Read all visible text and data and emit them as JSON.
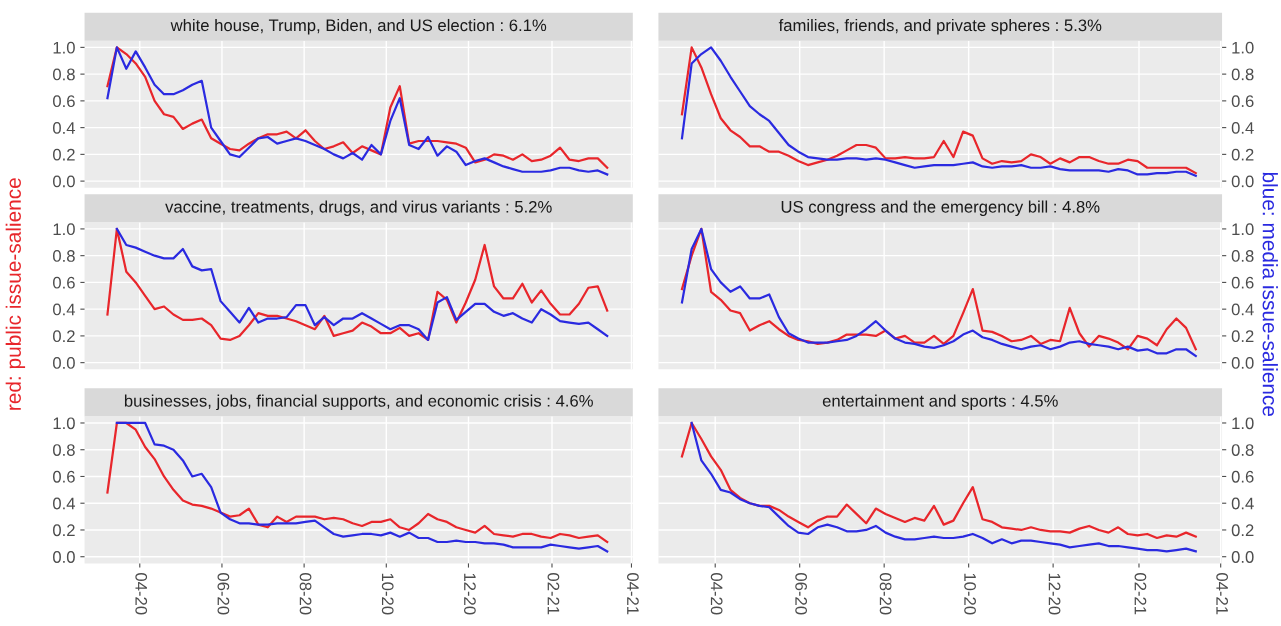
{
  "chart_data": [
    {
      "type": "line",
      "title": "white house, Trump, Biden, and US election : 6.1%",
      "grid": true,
      "tick_labels": "y",
      "x": [
        "2020-03-08",
        "2020-03-15",
        "2020-03-22",
        "2020-03-29",
        "2020-04-05",
        "2020-04-12",
        "2020-04-19",
        "2020-04-26",
        "2020-05-03",
        "2020-05-10",
        "2020-05-17",
        "2020-05-24",
        "2020-05-31",
        "2020-06-07",
        "2020-06-14",
        "2020-06-21",
        "2020-06-28",
        "2020-07-05",
        "2020-07-12",
        "2020-07-19",
        "2020-07-26",
        "2020-08-02",
        "2020-08-09",
        "2020-08-16",
        "2020-08-23",
        "2020-08-30",
        "2020-09-06",
        "2020-09-13",
        "2020-09-20",
        "2020-09-27",
        "2020-10-04",
        "2020-10-11",
        "2020-10-18",
        "2020-10-25",
        "2020-11-01",
        "2020-11-08",
        "2020-11-15",
        "2020-11-22",
        "2020-11-29",
        "2020-12-06",
        "2020-12-13",
        "2020-12-20",
        "2020-12-27",
        "2021-01-03",
        "2021-01-10",
        "2021-01-17",
        "2021-01-24",
        "2021-01-31",
        "2021-02-07",
        "2021-02-14",
        "2021-02-21",
        "2021-02-28",
        "2021-03-07",
        "2021-03-14"
      ],
      "xlim": [
        "2020-02-20",
        "2021-04-02"
      ],
      "ylim": [
        -0.05,
        1.05
      ],
      "yticks": [
        {
          "value": 0,
          "label": "0.0"
        },
        {
          "value": 0.2,
          "label": "0.2"
        },
        {
          "value": 0.4,
          "label": "0.4"
        },
        {
          "value": 0.6,
          "label": "0.6"
        },
        {
          "value": 0.8,
          "label": "0.8"
        },
        {
          "value": 1,
          "label": "1.0"
        }
      ],
      "xticks": [
        {
          "value": "2020-04-01",
          "label": null
        },
        {
          "value": "2020-06-01",
          "label": null
        },
        {
          "value": "2020-08-01",
          "label": null
        },
        {
          "value": "2020-10-01",
          "label": null
        },
        {
          "value": "2020-12-01",
          "label": null
        },
        {
          "value": "2021-02-01",
          "label": null
        },
        {
          "value": "2021-04-01",
          "label": null
        }
      ],
      "series": [
        {
          "color": "#e8262b",
          "values": [
            0.71,
            1.0,
            0.95,
            0.88,
            0.78,
            0.6,
            0.5,
            0.48,
            0.39,
            0.43,
            0.46,
            0.32,
            0.28,
            0.24,
            0.23,
            0.28,
            0.32,
            0.35,
            0.35,
            0.37,
            0.32,
            0.38,
            0.3,
            0.24,
            0.26,
            0.29,
            0.21,
            0.26,
            0.23,
            0.2,
            0.55,
            0.71,
            0.28,
            0.3,
            0.3,
            0.3,
            0.29,
            0.28,
            0.25,
            0.14,
            0.16,
            0.2,
            0.19,
            0.16,
            0.2,
            0.15,
            0.16,
            0.19,
            0.25,
            0.16,
            0.15,
            0.17,
            0.17,
            0.1
          ]
        },
        {
          "color": "#2a2ae0",
          "values": [
            0.62,
            1.0,
            0.84,
            0.97,
            0.85,
            0.72,
            0.65,
            0.65,
            0.68,
            0.72,
            0.75,
            0.4,
            0.3,
            0.2,
            0.18,
            0.25,
            0.32,
            0.33,
            0.28,
            0.3,
            0.32,
            0.3,
            0.27,
            0.24,
            0.2,
            0.17,
            0.21,
            0.16,
            0.27,
            0.2,
            0.45,
            0.62,
            0.27,
            0.24,
            0.33,
            0.19,
            0.26,
            0.22,
            0.12,
            0.15,
            0.17,
            0.14,
            0.11,
            0.09,
            0.07,
            0.07,
            0.07,
            0.08,
            0.1,
            0.1,
            0.08,
            0.07,
            0.08,
            0.05
          ]
        }
      ]
    },
    {
      "type": "line",
      "title": "families, friends, and private spheres : 5.3%",
      "grid": true,
      "tick_labels": "y",
      "x": [
        "2020-03-08",
        "2020-03-15",
        "2020-03-22",
        "2020-03-29",
        "2020-04-05",
        "2020-04-12",
        "2020-04-19",
        "2020-04-26",
        "2020-05-03",
        "2020-05-10",
        "2020-05-17",
        "2020-05-24",
        "2020-05-31",
        "2020-06-07",
        "2020-06-14",
        "2020-06-21",
        "2020-06-28",
        "2020-07-05",
        "2020-07-12",
        "2020-07-19",
        "2020-07-26",
        "2020-08-02",
        "2020-08-09",
        "2020-08-16",
        "2020-08-23",
        "2020-08-30",
        "2020-09-06",
        "2020-09-13",
        "2020-09-20",
        "2020-09-27",
        "2020-10-04",
        "2020-10-11",
        "2020-10-18",
        "2020-10-25",
        "2020-11-01",
        "2020-11-08",
        "2020-11-15",
        "2020-11-22",
        "2020-11-29",
        "2020-12-06",
        "2020-12-13",
        "2020-12-20",
        "2020-12-27",
        "2021-01-03",
        "2021-01-10",
        "2021-01-17",
        "2021-01-24",
        "2021-01-31",
        "2021-02-07",
        "2021-02-14",
        "2021-02-21",
        "2021-02-28",
        "2021-03-07",
        "2021-03-14"
      ],
      "xlim": [
        "2020-02-20",
        "2021-04-02"
      ],
      "ylim": [
        -0.05,
        1.05
      ],
      "yticks": [
        {
          "value": 0,
          "label": "0.0"
        },
        {
          "value": 0.2,
          "label": "0.2"
        },
        {
          "value": 0.4,
          "label": "0.4"
        },
        {
          "value": 0.6,
          "label": "0.6"
        },
        {
          "value": 0.8,
          "label": "0.8"
        },
        {
          "value": 1,
          "label": "1.0"
        }
      ],
      "xticks": [
        {
          "value": "2020-04-01",
          "label": null
        },
        {
          "value": "2020-06-01",
          "label": null
        },
        {
          "value": "2020-08-01",
          "label": null
        },
        {
          "value": "2020-10-01",
          "label": null
        },
        {
          "value": "2020-12-01",
          "label": null
        },
        {
          "value": "2021-02-01",
          "label": null
        },
        {
          "value": "2021-04-01",
          "label": null
        }
      ],
      "series": [
        {
          "color": "#e8262b",
          "values": [
            0.5,
            1.0,
            0.85,
            0.65,
            0.47,
            0.38,
            0.33,
            0.26,
            0.26,
            0.22,
            0.22,
            0.19,
            0.15,
            0.12,
            0.14,
            0.16,
            0.19,
            0.23,
            0.27,
            0.27,
            0.25,
            0.17,
            0.17,
            0.18,
            0.17,
            0.17,
            0.18,
            0.3,
            0.18,
            0.37,
            0.34,
            0.17,
            0.13,
            0.15,
            0.14,
            0.15,
            0.2,
            0.18,
            0.13,
            0.17,
            0.14,
            0.18,
            0.18,
            0.15,
            0.13,
            0.13,
            0.16,
            0.15,
            0.1,
            0.1,
            0.1,
            0.1,
            0.1,
            0.06
          ]
        },
        {
          "color": "#2a2ae0",
          "values": [
            0.32,
            0.88,
            0.95,
            1.0,
            0.9,
            0.78,
            0.67,
            0.56,
            0.5,
            0.45,
            0.36,
            0.27,
            0.22,
            0.18,
            0.17,
            0.16,
            0.16,
            0.17,
            0.17,
            0.16,
            0.17,
            0.16,
            0.14,
            0.12,
            0.1,
            0.11,
            0.12,
            0.12,
            0.12,
            0.13,
            0.14,
            0.11,
            0.1,
            0.11,
            0.11,
            0.12,
            0.1,
            0.1,
            0.11,
            0.09,
            0.08,
            0.08,
            0.08,
            0.08,
            0.07,
            0.09,
            0.08,
            0.05,
            0.05,
            0.06,
            0.06,
            0.07,
            0.07,
            0.04
          ]
        }
      ]
    },
    {
      "type": "line",
      "title": "vaccine, treatments, drugs, and virus variants : 5.2%",
      "ylabel": "red: public issue-salience",
      "grid": true,
      "tick_labels": "y",
      "x": [
        "2020-03-08",
        "2020-03-15",
        "2020-03-22",
        "2020-03-29",
        "2020-04-05",
        "2020-04-12",
        "2020-04-19",
        "2020-04-26",
        "2020-05-03",
        "2020-05-10",
        "2020-05-17",
        "2020-05-24",
        "2020-05-31",
        "2020-06-07",
        "2020-06-14",
        "2020-06-21",
        "2020-06-28",
        "2020-07-05",
        "2020-07-12",
        "2020-07-19",
        "2020-07-26",
        "2020-08-02",
        "2020-08-09",
        "2020-08-16",
        "2020-08-23",
        "2020-08-30",
        "2020-09-06",
        "2020-09-13",
        "2020-09-20",
        "2020-09-27",
        "2020-10-04",
        "2020-10-11",
        "2020-10-18",
        "2020-10-25",
        "2020-11-01",
        "2020-11-08",
        "2020-11-15",
        "2020-11-22",
        "2020-11-29",
        "2020-12-06",
        "2020-12-13",
        "2020-12-20",
        "2020-12-27",
        "2021-01-03",
        "2021-01-10",
        "2021-01-17",
        "2021-01-24",
        "2021-01-31",
        "2021-02-07",
        "2021-02-14",
        "2021-02-21",
        "2021-02-28",
        "2021-03-07",
        "2021-03-14"
      ],
      "xlim": [
        "2020-02-20",
        "2021-04-02"
      ],
      "ylim": [
        -0.05,
        1.05
      ],
      "yticks": [
        {
          "value": 0,
          "label": "0.0"
        },
        {
          "value": 0.2,
          "label": "0.2"
        },
        {
          "value": 0.4,
          "label": "0.4"
        },
        {
          "value": 0.6,
          "label": "0.6"
        },
        {
          "value": 0.8,
          "label": "0.8"
        },
        {
          "value": 1,
          "label": "1.0"
        }
      ],
      "xticks": [
        {
          "value": "2020-04-01",
          "label": null
        },
        {
          "value": "2020-06-01",
          "label": null
        },
        {
          "value": "2020-08-01",
          "label": null
        },
        {
          "value": "2020-10-01",
          "label": null
        },
        {
          "value": "2020-12-01",
          "label": null
        },
        {
          "value": "2021-02-01",
          "label": null
        },
        {
          "value": "2021-04-01",
          "label": null
        }
      ],
      "series": [
        {
          "color": "#e8262b",
          "values": [
            0.36,
            1.0,
            0.68,
            0.6,
            0.5,
            0.4,
            0.42,
            0.36,
            0.32,
            0.32,
            0.33,
            0.28,
            0.18,
            0.17,
            0.2,
            0.28,
            0.37,
            0.35,
            0.35,
            0.33,
            0.31,
            0.28,
            0.25,
            0.35,
            0.2,
            0.22,
            0.24,
            0.3,
            0.27,
            0.22,
            0.22,
            0.26,
            0.2,
            0.22,
            0.17,
            0.53,
            0.47,
            0.3,
            0.45,
            0.62,
            0.88,
            0.57,
            0.48,
            0.48,
            0.59,
            0.45,
            0.54,
            0.44,
            0.36,
            0.36,
            0.44,
            0.56,
            0.57,
            0.39
          ]
        },
        {
          "color": "#2a2ae0",
          "values": [
            null,
            1.0,
            0.88,
            0.86,
            0.83,
            0.8,
            0.78,
            0.78,
            0.85,
            0.72,
            0.69,
            0.7,
            0.46,
            0.38,
            0.3,
            0.41,
            0.3,
            0.33,
            0.33,
            0.34,
            0.43,
            0.43,
            0.28,
            0.34,
            0.28,
            0.33,
            0.33,
            0.37,
            0.33,
            0.29,
            0.25,
            0.28,
            0.28,
            0.25,
            0.17,
            0.45,
            0.49,
            0.32,
            0.38,
            0.44,
            0.44,
            0.38,
            0.35,
            0.37,
            0.33,
            0.3,
            0.4,
            0.36,
            0.31,
            0.3,
            0.29,
            0.3,
            0.25,
            0.2
          ]
        }
      ]
    },
    {
      "type": "line",
      "title": "US congress and the emergency bill : 4.8%",
      "ylabel": "blue: media issue-salience",
      "grid": true,
      "tick_labels": "y",
      "x": [
        "2020-03-08",
        "2020-03-15",
        "2020-03-22",
        "2020-03-29",
        "2020-04-05",
        "2020-04-12",
        "2020-04-19",
        "2020-04-26",
        "2020-05-03",
        "2020-05-10",
        "2020-05-17",
        "2020-05-24",
        "2020-05-31",
        "2020-06-07",
        "2020-06-14",
        "2020-06-21",
        "2020-06-28",
        "2020-07-05",
        "2020-07-12",
        "2020-07-19",
        "2020-07-26",
        "2020-08-02",
        "2020-08-09",
        "2020-08-16",
        "2020-08-23",
        "2020-08-30",
        "2020-09-06",
        "2020-09-13",
        "2020-09-20",
        "2020-09-27",
        "2020-10-04",
        "2020-10-11",
        "2020-10-18",
        "2020-10-25",
        "2020-11-01",
        "2020-11-08",
        "2020-11-15",
        "2020-11-22",
        "2020-11-29",
        "2020-12-06",
        "2020-12-13",
        "2020-12-20",
        "2020-12-27",
        "2021-01-03",
        "2021-01-10",
        "2021-01-17",
        "2021-01-24",
        "2021-01-31",
        "2021-02-07",
        "2021-02-14",
        "2021-02-21",
        "2021-02-28",
        "2021-03-07",
        "2021-03-14"
      ],
      "xlim": [
        "2020-02-20",
        "2021-04-02"
      ],
      "ylim": [
        -0.05,
        1.05
      ],
      "yticks": [
        {
          "value": 0,
          "label": "0.0"
        },
        {
          "value": 0.2,
          "label": "0.2"
        },
        {
          "value": 0.4,
          "label": "0.4"
        },
        {
          "value": 0.6,
          "label": "0.6"
        },
        {
          "value": 0.8,
          "label": "0.8"
        },
        {
          "value": 1,
          "label": "1.0"
        }
      ],
      "xticks": [
        {
          "value": "2020-04-01",
          "label": null
        },
        {
          "value": "2020-06-01",
          "label": null
        },
        {
          "value": "2020-08-01",
          "label": null
        },
        {
          "value": "2020-10-01",
          "label": null
        },
        {
          "value": "2020-12-01",
          "label": null
        },
        {
          "value": "2021-02-01",
          "label": null
        },
        {
          "value": "2021-04-01",
          "label": null
        }
      ],
      "series": [
        {
          "color": "#e8262b",
          "values": [
            0.55,
            0.8,
            1.0,
            0.53,
            0.47,
            0.39,
            0.37,
            0.24,
            0.28,
            0.31,
            0.25,
            0.2,
            0.17,
            0.16,
            0.14,
            0.15,
            0.17,
            0.21,
            0.21,
            0.21,
            0.2,
            0.24,
            0.18,
            0.2,
            0.15,
            0.15,
            0.2,
            0.14,
            0.2,
            0.37,
            0.55,
            0.24,
            0.23,
            0.2,
            0.16,
            0.17,
            0.2,
            0.14,
            0.17,
            0.16,
            0.41,
            0.22,
            0.12,
            0.2,
            0.18,
            0.15,
            0.1,
            0.2,
            0.18,
            0.13,
            0.25,
            0.33,
            0.26,
            0.1
          ]
        },
        {
          "color": "#2a2ae0",
          "values": [
            0.45,
            0.85,
            1.0,
            0.7,
            0.6,
            0.53,
            0.57,
            0.48,
            0.48,
            0.51,
            0.34,
            0.22,
            0.18,
            0.15,
            0.15,
            0.15,
            0.16,
            0.17,
            0.2,
            0.25,
            0.31,
            0.24,
            0.18,
            0.15,
            0.14,
            0.12,
            0.11,
            0.13,
            0.16,
            0.21,
            0.24,
            0.19,
            0.17,
            0.14,
            0.12,
            0.1,
            0.12,
            0.13,
            0.1,
            0.12,
            0.15,
            0.16,
            0.14,
            0.13,
            0.12,
            0.1,
            0.12,
            0.09,
            0.1,
            0.07,
            0.07,
            0.1,
            0.1,
            0.05
          ]
        }
      ]
    },
    {
      "type": "line",
      "title": "businesses, jobs, financial supports, and economic crisis : 4.6%",
      "grid": true,
      "x": [
        "2020-03-08",
        "2020-03-15",
        "2020-03-22",
        "2020-03-29",
        "2020-04-05",
        "2020-04-12",
        "2020-04-19",
        "2020-04-26",
        "2020-05-03",
        "2020-05-10",
        "2020-05-17",
        "2020-05-24",
        "2020-05-31",
        "2020-06-07",
        "2020-06-14",
        "2020-06-21",
        "2020-06-28",
        "2020-07-05",
        "2020-07-12",
        "2020-07-19",
        "2020-07-26",
        "2020-08-02",
        "2020-08-09",
        "2020-08-16",
        "2020-08-23",
        "2020-08-30",
        "2020-09-06",
        "2020-09-13",
        "2020-09-20",
        "2020-09-27",
        "2020-10-04",
        "2020-10-11",
        "2020-10-18",
        "2020-10-25",
        "2020-11-01",
        "2020-11-08",
        "2020-11-15",
        "2020-11-22",
        "2020-11-29",
        "2020-12-06",
        "2020-12-13",
        "2020-12-20",
        "2020-12-27",
        "2021-01-03",
        "2021-01-10",
        "2021-01-17",
        "2021-01-24",
        "2021-01-31",
        "2021-02-07",
        "2021-02-14",
        "2021-02-21",
        "2021-02-28",
        "2021-03-07",
        "2021-03-14"
      ],
      "xlim": [
        "2020-02-20",
        "2021-04-02"
      ],
      "ylim": [
        -0.05,
        1.05
      ],
      "yticks": [
        {
          "value": 0,
          "label": "0.0"
        },
        {
          "value": 0.2,
          "label": "0.2"
        },
        {
          "value": 0.4,
          "label": "0.4"
        },
        {
          "value": 0.6,
          "label": "0.6"
        },
        {
          "value": 0.8,
          "label": "0.8"
        },
        {
          "value": 1,
          "label": "1.0"
        }
      ],
      "xticks": [
        {
          "value": "2020-04-01",
          "label": "04-20"
        },
        {
          "value": "2020-06-01",
          "label": "06-20"
        },
        {
          "value": "2020-08-01",
          "label": "08-20"
        },
        {
          "value": "2020-10-01",
          "label": "10-20"
        },
        {
          "value": "2020-12-01",
          "label": "12-20"
        },
        {
          "value": "2021-02-01",
          "label": "02-21"
        },
        {
          "value": "2021-04-01",
          "label": "04-21"
        }
      ],
      "series": [
        {
          "color": "#e8262b",
          "values": [
            0.48,
            1.0,
            1.0,
            0.95,
            0.82,
            0.73,
            0.6,
            0.5,
            0.42,
            0.39,
            0.38,
            0.36,
            0.33,
            0.3,
            0.31,
            0.36,
            0.24,
            0.22,
            0.3,
            0.26,
            0.3,
            0.3,
            0.3,
            0.28,
            0.29,
            0.28,
            0.25,
            0.23,
            0.26,
            0.26,
            0.28,
            0.22,
            0.2,
            0.25,
            0.32,
            0.28,
            0.26,
            0.22,
            0.2,
            0.18,
            0.23,
            0.17,
            0.16,
            0.15,
            0.17,
            0.17,
            0.15,
            0.14,
            0.17,
            0.16,
            0.14,
            0.15,
            0.16,
            0.11
          ]
        },
        {
          "color": "#2a2ae0",
          "values": [
            null,
            1.0,
            1.0,
            1.0,
            1.0,
            0.84,
            0.83,
            0.8,
            0.72,
            0.6,
            0.62,
            0.52,
            0.33,
            0.28,
            0.25,
            0.25,
            0.24,
            0.24,
            0.25,
            0.25,
            0.25,
            0.26,
            0.27,
            0.22,
            0.17,
            0.15,
            0.16,
            0.17,
            0.17,
            0.16,
            0.18,
            0.15,
            0.18,
            0.14,
            0.14,
            0.11,
            0.11,
            0.12,
            0.11,
            0.11,
            0.1,
            0.1,
            0.09,
            0.07,
            0.07,
            0.07,
            0.07,
            0.09,
            0.08,
            0.07,
            0.06,
            0.07,
            0.08,
            0.04
          ]
        }
      ]
    },
    {
      "type": "line",
      "title": "entertainment and sports : 4.5%",
      "grid": true,
      "x": [
        "2020-03-08",
        "2020-03-15",
        "2020-03-22",
        "2020-03-29",
        "2020-04-05",
        "2020-04-12",
        "2020-04-19",
        "2020-04-26",
        "2020-05-03",
        "2020-05-10",
        "2020-05-17",
        "2020-05-24",
        "2020-05-31",
        "2020-06-07",
        "2020-06-14",
        "2020-06-21",
        "2020-06-28",
        "2020-07-05",
        "2020-07-12",
        "2020-07-19",
        "2020-07-26",
        "2020-08-02",
        "2020-08-09",
        "2020-08-16",
        "2020-08-23",
        "2020-08-30",
        "2020-09-06",
        "2020-09-13",
        "2020-09-20",
        "2020-09-27",
        "2020-10-04",
        "2020-10-11",
        "2020-10-18",
        "2020-10-25",
        "2020-11-01",
        "2020-11-08",
        "2020-11-15",
        "2020-11-22",
        "2020-11-29",
        "2020-12-06",
        "2020-12-13",
        "2020-12-20",
        "2020-12-27",
        "2021-01-03",
        "2021-01-10",
        "2021-01-17",
        "2021-01-24",
        "2021-01-31",
        "2021-02-07",
        "2021-02-14",
        "2021-02-21",
        "2021-02-28",
        "2021-03-07",
        "2021-03-14"
      ],
      "xlim": [
        "2020-02-20",
        "2021-04-02"
      ],
      "ylim": [
        -0.05,
        1.05
      ],
      "yticks": [
        {
          "value": 0,
          "label": "0.0"
        },
        {
          "value": 0.2,
          "label": "0.2"
        },
        {
          "value": 0.4,
          "label": "0.4"
        },
        {
          "value": 0.6,
          "label": "0.6"
        },
        {
          "value": 0.8,
          "label": "0.8"
        },
        {
          "value": 1,
          "label": "1.0"
        }
      ],
      "xticks": [
        {
          "value": "2020-04-01",
          "label": "04-20"
        },
        {
          "value": "2020-06-01",
          "label": "06-20"
        },
        {
          "value": "2020-08-01",
          "label": "08-20"
        },
        {
          "value": "2020-10-01",
          "label": "10-20"
        },
        {
          "value": "2020-12-01",
          "label": "12-20"
        },
        {
          "value": "2021-02-01",
          "label": "02-21"
        },
        {
          "value": "2021-04-01",
          "label": "04-21"
        }
      ],
      "series": [
        {
          "color": "#e8262b",
          "values": [
            0.75,
            1.0,
            0.88,
            0.75,
            0.65,
            0.5,
            0.44,
            0.4,
            0.38,
            0.38,
            0.35,
            0.3,
            0.26,
            0.22,
            0.27,
            0.3,
            0.3,
            0.39,
            0.32,
            0.25,
            0.36,
            0.32,
            0.29,
            0.26,
            0.29,
            0.27,
            0.38,
            0.24,
            0.27,
            0.4,
            0.52,
            0.28,
            0.26,
            0.22,
            0.21,
            0.2,
            0.22,
            0.2,
            0.19,
            0.19,
            0.18,
            0.21,
            0.23,
            0.2,
            0.18,
            0.22,
            0.17,
            0.16,
            0.17,
            0.14,
            0.16,
            0.15,
            0.18,
            0.15
          ]
        },
        {
          "color": "#2a2ae0",
          "values": [
            null,
            1.0,
            0.72,
            0.62,
            0.5,
            0.48,
            0.43,
            0.4,
            0.38,
            0.37,
            0.3,
            0.23,
            0.18,
            0.17,
            0.22,
            0.24,
            0.22,
            0.19,
            0.19,
            0.2,
            0.23,
            0.18,
            0.15,
            0.13,
            0.13,
            0.14,
            0.15,
            0.14,
            0.14,
            0.15,
            0.17,
            0.14,
            0.1,
            0.13,
            0.1,
            0.12,
            0.12,
            0.11,
            0.1,
            0.09,
            0.07,
            0.08,
            0.09,
            0.1,
            0.08,
            0.08,
            0.07,
            0.06,
            0.05,
            0.05,
            0.04,
            0.05,
            0.06,
            0.04
          ]
        }
      ]
    }
  ]
}
